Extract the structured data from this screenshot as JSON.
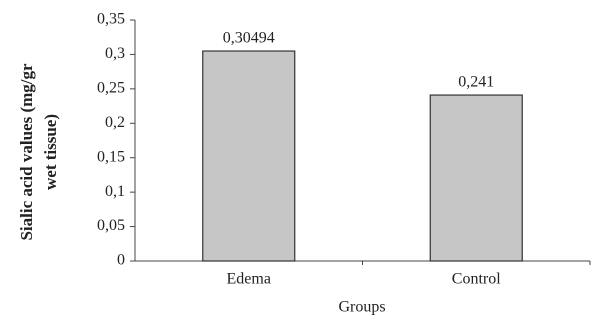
{
  "chart_data": {
    "type": "bar",
    "xlabel": "Groups",
    "ylabel": [
      "Sialic acid values (mg/gr",
      "wet tissue)"
    ],
    "categories": [
      "Edema",
      "Control"
    ],
    "values": [
      0.30494,
      0.241
    ],
    "value_labels": [
      "0,30494",
      "0,241"
    ],
    "color": "#c6c6c6",
    "ylim": [
      0,
      0.35
    ],
    "yticks": [
      0,
      {
        "value": 0.05,
        "label": "0,05"
      },
      {
        "value": 0.1,
        "label": "0,1"
      },
      {
        "value": 0.15,
        "label": "0,15"
      },
      {
        "value": 0.2,
        "label": "0,2"
      },
      {
        "value": 0.25,
        "label": "0,25"
      },
      {
        "value": 0.3,
        "label": "0,3"
      },
      {
        "value": 0.35,
        "label": "0,35"
      }
    ]
  }
}
